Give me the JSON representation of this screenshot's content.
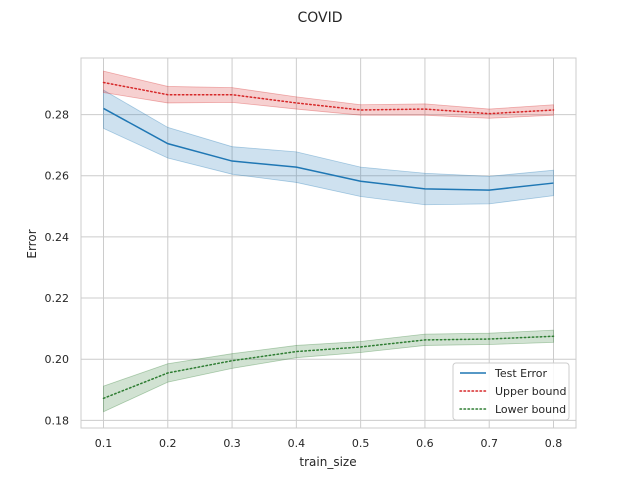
{
  "chart_data": {
    "type": "line",
    "title": "COVID",
    "xlabel": "train_size",
    "ylabel": "Error",
    "x": [
      0.1,
      0.2,
      0.3,
      0.4,
      0.5,
      0.6,
      0.7,
      0.8
    ],
    "xticks": [
      "0.1",
      "0.2",
      "0.3",
      "0.4",
      "0.5",
      "0.6",
      "0.7",
      "0.8"
    ],
    "yticks": [
      "0.18",
      "0.20",
      "0.22",
      "0.24",
      "0.26",
      "0.28"
    ],
    "xlim": [
      0.065,
      0.835
    ],
    "ylim": [
      0.1775,
      0.2985
    ],
    "grid": true,
    "legend_position": "bottom-right",
    "series": [
      {
        "name": "Test Error",
        "color": "#1f77b4",
        "linestyle": "solid",
        "values": [
          0.282,
          0.2705,
          0.2648,
          0.2628,
          0.2582,
          0.2557,
          0.2553,
          0.2576
        ],
        "lower": [
          0.2755,
          0.2658,
          0.2605,
          0.2578,
          0.2532,
          0.2505,
          0.2508,
          0.2535
        ],
        "upper": [
          0.288,
          0.2758,
          0.2695,
          0.2678,
          0.2628,
          0.2608,
          0.2598,
          0.2618
        ]
      },
      {
        "name": "Upper bound",
        "color": "#d62728",
        "linestyle": "dotted",
        "values": [
          0.2905,
          0.2865,
          0.2865,
          0.2838,
          0.2815,
          0.2818,
          0.2803,
          0.2815
        ],
        "lower": [
          0.2872,
          0.2838,
          0.284,
          0.2818,
          0.2798,
          0.2798,
          0.2788,
          0.2798
        ],
        "upper": [
          0.2942,
          0.2892,
          0.2888,
          0.2858,
          0.2832,
          0.2835,
          0.2818,
          0.2832
        ]
      },
      {
        "name": "Lower bound",
        "color": "#2e7d32",
        "linestyle": "dotted",
        "values": [
          0.1872,
          0.1955,
          0.1995,
          0.2025,
          0.204,
          0.2063,
          0.2066,
          0.2075
        ],
        "lower": [
          0.1828,
          0.1925,
          0.197,
          0.2005,
          0.2022,
          0.2045,
          0.2048,
          0.2055
        ],
        "upper": [
          0.1912,
          0.1985,
          0.2018,
          0.2045,
          0.2058,
          0.2082,
          0.2085,
          0.2095
        ]
      }
    ]
  }
}
